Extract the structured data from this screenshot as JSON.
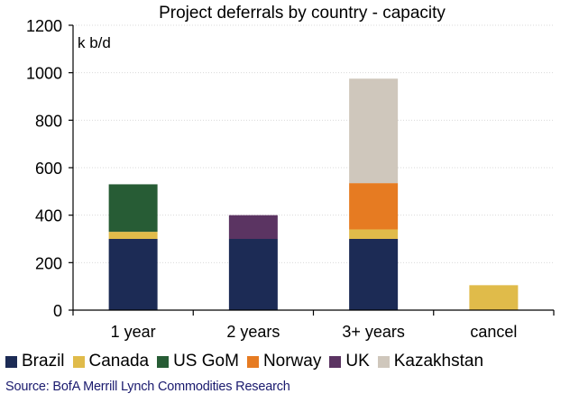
{
  "chart_data": {
    "type": "bar",
    "stacked": true,
    "title": "Project deferrals by country - capacity",
    "ylabel": "k b/d",
    "xlabel": "",
    "ylim": [
      0,
      1200
    ],
    "yticks": [
      0,
      200,
      400,
      600,
      800,
      1000,
      1200
    ],
    "categories": [
      "1 year",
      "2 years",
      "3+ years",
      "cancel"
    ],
    "series": [
      {
        "name": "Brazil",
        "color": "#1c2b55",
        "values": [
          300,
          300,
          300,
          0
        ]
      },
      {
        "name": "Canada",
        "color": "#e0bb4a",
        "values": [
          30,
          0,
          40,
          105
        ]
      },
      {
        "name": "US GoM",
        "color": "#275c35",
        "values": [
          200,
          0,
          0,
          0
        ]
      },
      {
        "name": "Norway",
        "color": "#e67b22",
        "values": [
          0,
          0,
          195,
          0
        ]
      },
      {
        "name": "UK",
        "color": "#5b3462",
        "values": [
          0,
          100,
          0,
          0
        ]
      },
      {
        "name": "Kazakhstan",
        "color": "#cfc7bc",
        "values": [
          0,
          0,
          440,
          0
        ]
      }
    ],
    "legend_position": "bottom",
    "grid": true
  },
  "source": "Source: BofA Merrill Lynch Commodities Research"
}
